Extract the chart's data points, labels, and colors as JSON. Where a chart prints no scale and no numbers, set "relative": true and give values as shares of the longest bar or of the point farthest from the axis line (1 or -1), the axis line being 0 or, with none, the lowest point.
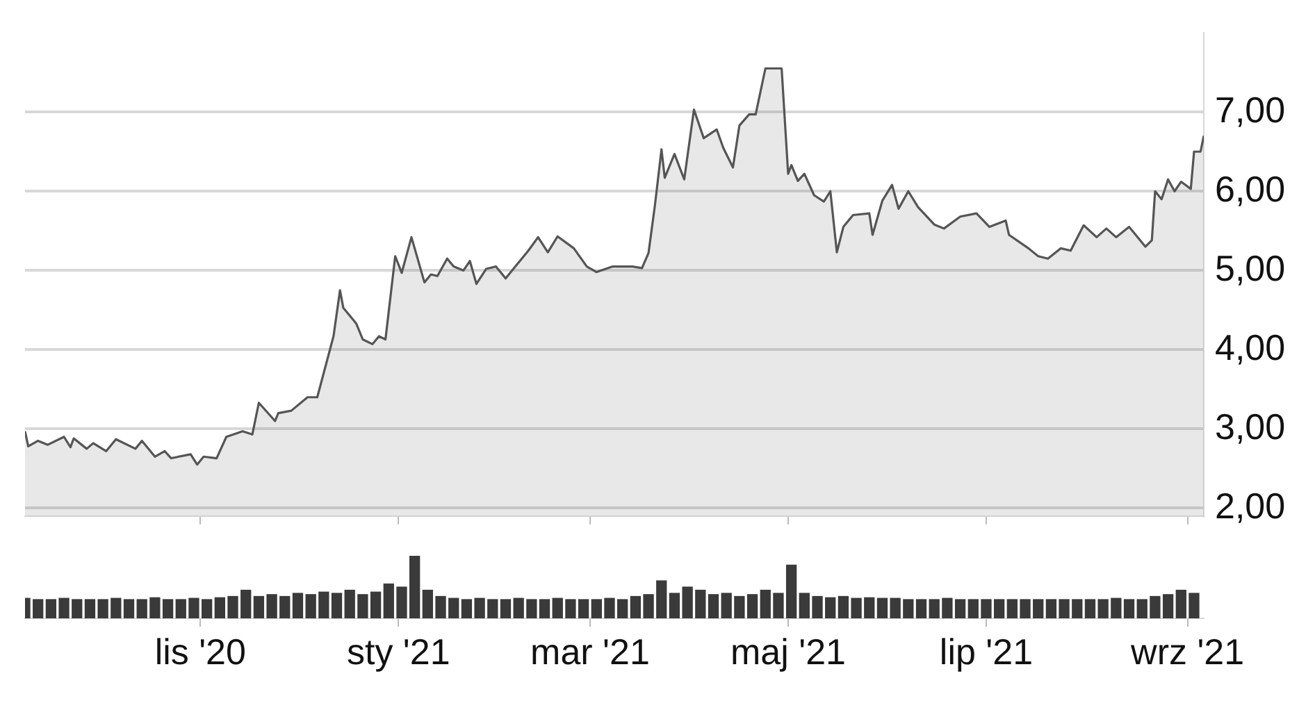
{
  "chart_data": [
    {
      "type": "area",
      "x": [
        "2020-09-08",
        "2020-09-09",
        "2020-09-12",
        "2020-09-15",
        "2020-09-20",
        "2020-09-22",
        "2020-09-23",
        "2020-09-27",
        "2020-09-29",
        "2020-10-03",
        "2020-10-06",
        "2020-10-12",
        "2020-10-14",
        "2020-10-18",
        "2020-10-21",
        "2020-10-23",
        "2020-10-29",
        "2020-10-31",
        "2020-11-02",
        "2020-11-06",
        "2020-11-09",
        "2020-11-14",
        "2020-11-17",
        "2020-11-19",
        "2020-11-24",
        "2020-11-25",
        "2020-11-29",
        "2020-12-04",
        "2020-12-07",
        "2020-12-12",
        "2020-12-14",
        "2020-12-15",
        "2020-12-19",
        "2020-12-21",
        "2020-12-24",
        "2020-12-26",
        "2020-12-28",
        "2020-12-31",
        "2021-01-02",
        "2021-01-05",
        "2021-01-09",
        "2021-01-11",
        "2021-01-13",
        "2021-01-16",
        "2021-01-18",
        "2021-01-21",
        "2021-01-23",
        "2021-01-25",
        "2021-01-28",
        "2021-01-31",
        "2021-02-03",
        "2021-02-06",
        "2021-02-10",
        "2021-02-13",
        "2021-02-16",
        "2021-02-19",
        "2021-02-24",
        "2021-02-28",
        "2021-03-03",
        "2021-03-08",
        "2021-03-14",
        "2021-03-17",
        "2021-03-19",
        "2021-03-21",
        "2021-03-23",
        "2021-03-24",
        "2021-03-27",
        "2021-03-30",
        "2021-04-02",
        "2021-04-05",
        "2021-04-09",
        "2021-04-11",
        "2021-04-14",
        "2021-04-16",
        "2021-04-19",
        "2021-04-21",
        "2021-04-24",
        "2021-04-29",
        "2021-05-01",
        "2021-05-02",
        "2021-05-04",
        "2021-05-06",
        "2021-05-09",
        "2021-05-12",
        "2021-05-14",
        "2021-05-16",
        "2021-05-18",
        "2021-05-21",
        "2021-05-26",
        "2021-05-27",
        "2021-05-30",
        "2021-06-02",
        "2021-06-04",
        "2021-06-07",
        "2021-06-10",
        "2021-06-15",
        "2021-06-18",
        "2021-06-23",
        "2021-06-28",
        "2021-07-02",
        "2021-07-07",
        "2021-07-08",
        "2021-07-14",
        "2021-07-17",
        "2021-07-20",
        "2021-07-24",
        "2021-07-27",
        "2021-07-31",
        "2021-08-04",
        "2021-08-07",
        "2021-08-10",
        "2021-08-14",
        "2021-08-19",
        "2021-08-21",
        "2021-08-22",
        "2021-08-24",
        "2021-08-26",
        "2021-08-28",
        "2021-08-30",
        "2021-09-02",
        "2021-09-03",
        "2021-09-05",
        "2021-09-06"
      ],
      "series": [
        {
          "color": "#555555",
          "values": [
            2.97,
            2.78,
            2.85,
            2.8,
            2.9,
            2.77,
            2.88,
            2.75,
            2.82,
            2.72,
            2.87,
            2.75,
            2.85,
            2.65,
            2.72,
            2.63,
            2.68,
            2.55,
            2.65,
            2.63,
            2.9,
            2.97,
            2.93,
            3.33,
            3.1,
            3.2,
            3.23,
            3.4,
            3.4,
            4.17,
            4.75,
            4.53,
            4.33,
            4.13,
            4.07,
            4.17,
            4.13,
            5.18,
            4.97,
            5.42,
            4.85,
            4.95,
            4.93,
            5.15,
            5.05,
            5.0,
            5.12,
            4.83,
            5.02,
            5.05,
            4.9,
            5.05,
            5.25,
            5.42,
            5.23,
            5.43,
            5.28,
            5.05,
            4.98,
            5.05,
            5.05,
            5.03,
            5.22,
            5.83,
            6.53,
            6.17,
            6.47,
            6.15,
            7.03,
            6.67,
            6.78,
            6.55,
            6.3,
            6.83,
            6.97,
            6.97,
            7.55,
            7.55,
            6.22,
            6.33,
            6.13,
            6.22,
            5.95,
            5.87,
            6.0,
            5.23,
            5.55,
            5.7,
            5.72,
            5.45,
            5.88,
            6.08,
            5.78,
            6.0,
            5.8,
            5.58,
            5.53,
            5.68,
            5.72,
            5.55,
            5.63,
            5.45,
            5.28,
            5.18,
            5.15,
            5.28,
            5.25,
            5.57,
            5.42,
            5.53,
            5.42,
            5.55,
            5.3,
            5.38,
            6.0,
            5.9,
            6.15,
            6.0,
            6.12,
            6.03,
            6.5,
            6.5,
            6.7
          ]
        }
      ],
      "xlim": [
        "2020-09-08",
        "2021-09-06"
      ],
      "xticks": [
        {
          "value": "2020-11-01",
          "label": null
        },
        {
          "value": "2021-01-01",
          "label": null
        },
        {
          "value": "2021-03-01",
          "label": null
        },
        {
          "value": "2021-05-01",
          "label": null
        },
        {
          "value": "2021-07-01",
          "label": null
        },
        {
          "value": "2021-09-01",
          "label": null
        }
      ],
      "ylim": [
        1.9,
        8.0
      ],
      "yticks": [
        {
          "value": 2,
          "label": "2,00"
        },
        {
          "value": 3,
          "label": "3,00"
        },
        {
          "value": 4,
          "label": "4,00"
        },
        {
          "value": 5,
          "label": "5,00"
        },
        {
          "value": 6,
          "label": "6,00"
        },
        {
          "value": 7,
          "label": "7,00"
        }
      ],
      "grid": "y",
      "tick_labels": "y"
    },
    {
      "type": "bar",
      "relative": true,
      "tick_labels": "x",
      "x": [
        "2020-09-08",
        "2020-09-12",
        "2020-09-16",
        "2020-09-20",
        "2020-09-24",
        "2020-09-28",
        "2020-10-02",
        "2020-10-06",
        "2020-10-10",
        "2020-10-14",
        "2020-10-18",
        "2020-10-22",
        "2020-10-26",
        "2020-10-30",
        "2020-11-03",
        "2020-11-07",
        "2020-11-11",
        "2020-11-15",
        "2020-11-19",
        "2020-11-23",
        "2020-11-27",
        "2020-12-01",
        "2020-12-05",
        "2020-12-09",
        "2020-12-13",
        "2020-12-17",
        "2020-12-21",
        "2020-12-25",
        "2020-12-29",
        "2021-01-02",
        "2021-01-06",
        "2021-01-10",
        "2021-01-14",
        "2021-01-18",
        "2021-01-22",
        "2021-01-26",
        "2021-01-30",
        "2021-02-03",
        "2021-02-07",
        "2021-02-11",
        "2021-02-15",
        "2021-02-19",
        "2021-02-23",
        "2021-02-27",
        "2021-03-03",
        "2021-03-07",
        "2021-03-11",
        "2021-03-15",
        "2021-03-19",
        "2021-03-23",
        "2021-03-27",
        "2021-03-31",
        "2021-04-04",
        "2021-04-08",
        "2021-04-12",
        "2021-04-16",
        "2021-04-20",
        "2021-04-24",
        "2021-04-28",
        "2021-05-02",
        "2021-05-06",
        "2021-05-10",
        "2021-05-14",
        "2021-05-18",
        "2021-05-22",
        "2021-05-26",
        "2021-05-30",
        "2021-06-03",
        "2021-06-07",
        "2021-06-11",
        "2021-06-15",
        "2021-06-19",
        "2021-06-23",
        "2021-06-27",
        "2021-07-01",
        "2021-07-05",
        "2021-07-09",
        "2021-07-13",
        "2021-07-17",
        "2021-07-21",
        "2021-07-25",
        "2021-07-29",
        "2021-08-02",
        "2021-08-06",
        "2021-08-10",
        "2021-08-14",
        "2021-08-18",
        "2021-08-22",
        "2021-08-26",
        "2021-08-30",
        "2021-09-03"
      ],
      "series": [
        {
          "color": "#3a3a3a",
          "values": [
            0.32,
            0.3,
            0.3,
            0.32,
            0.3,
            0.3,
            0.3,
            0.32,
            0.3,
            0.3,
            0.33,
            0.3,
            0.3,
            0.32,
            0.3,
            0.33,
            0.35,
            0.45,
            0.35,
            0.38,
            0.35,
            0.4,
            0.38,
            0.42,
            0.4,
            0.45,
            0.38,
            0.42,
            0.55,
            0.5,
            1.0,
            0.45,
            0.35,
            0.32,
            0.3,
            0.32,
            0.3,
            0.3,
            0.32,
            0.3,
            0.3,
            0.32,
            0.3,
            0.3,
            0.3,
            0.32,
            0.3,
            0.35,
            0.38,
            0.6,
            0.4,
            0.5,
            0.45,
            0.38,
            0.4,
            0.35,
            0.38,
            0.45,
            0.4,
            0.85,
            0.4,
            0.35,
            0.33,
            0.35,
            0.32,
            0.33,
            0.32,
            0.32,
            0.3,
            0.3,
            0.3,
            0.32,
            0.3,
            0.3,
            0.3,
            0.3,
            0.3,
            0.3,
            0.3,
            0.3,
            0.3,
            0.3,
            0.3,
            0.3,
            0.32,
            0.3,
            0.3,
            0.35,
            0.38,
            0.45,
            0.4
          ]
        }
      ],
      "xlim": [
        "2020-09-08",
        "2021-09-06"
      ],
      "xticks": [
        {
          "value": "2020-11-01",
          "label": "lis '20"
        },
        {
          "value": "2021-01-01",
          "label": "sty '21"
        },
        {
          "value": "2021-03-01",
          "label": "mar '21"
        },
        {
          "value": "2021-05-01",
          "label": "maj '21"
        },
        {
          "value": "2021-07-01",
          "label": "lip '21"
        },
        {
          "value": "2021-09-01",
          "label": "wrz '21"
        }
      ]
    }
  ]
}
